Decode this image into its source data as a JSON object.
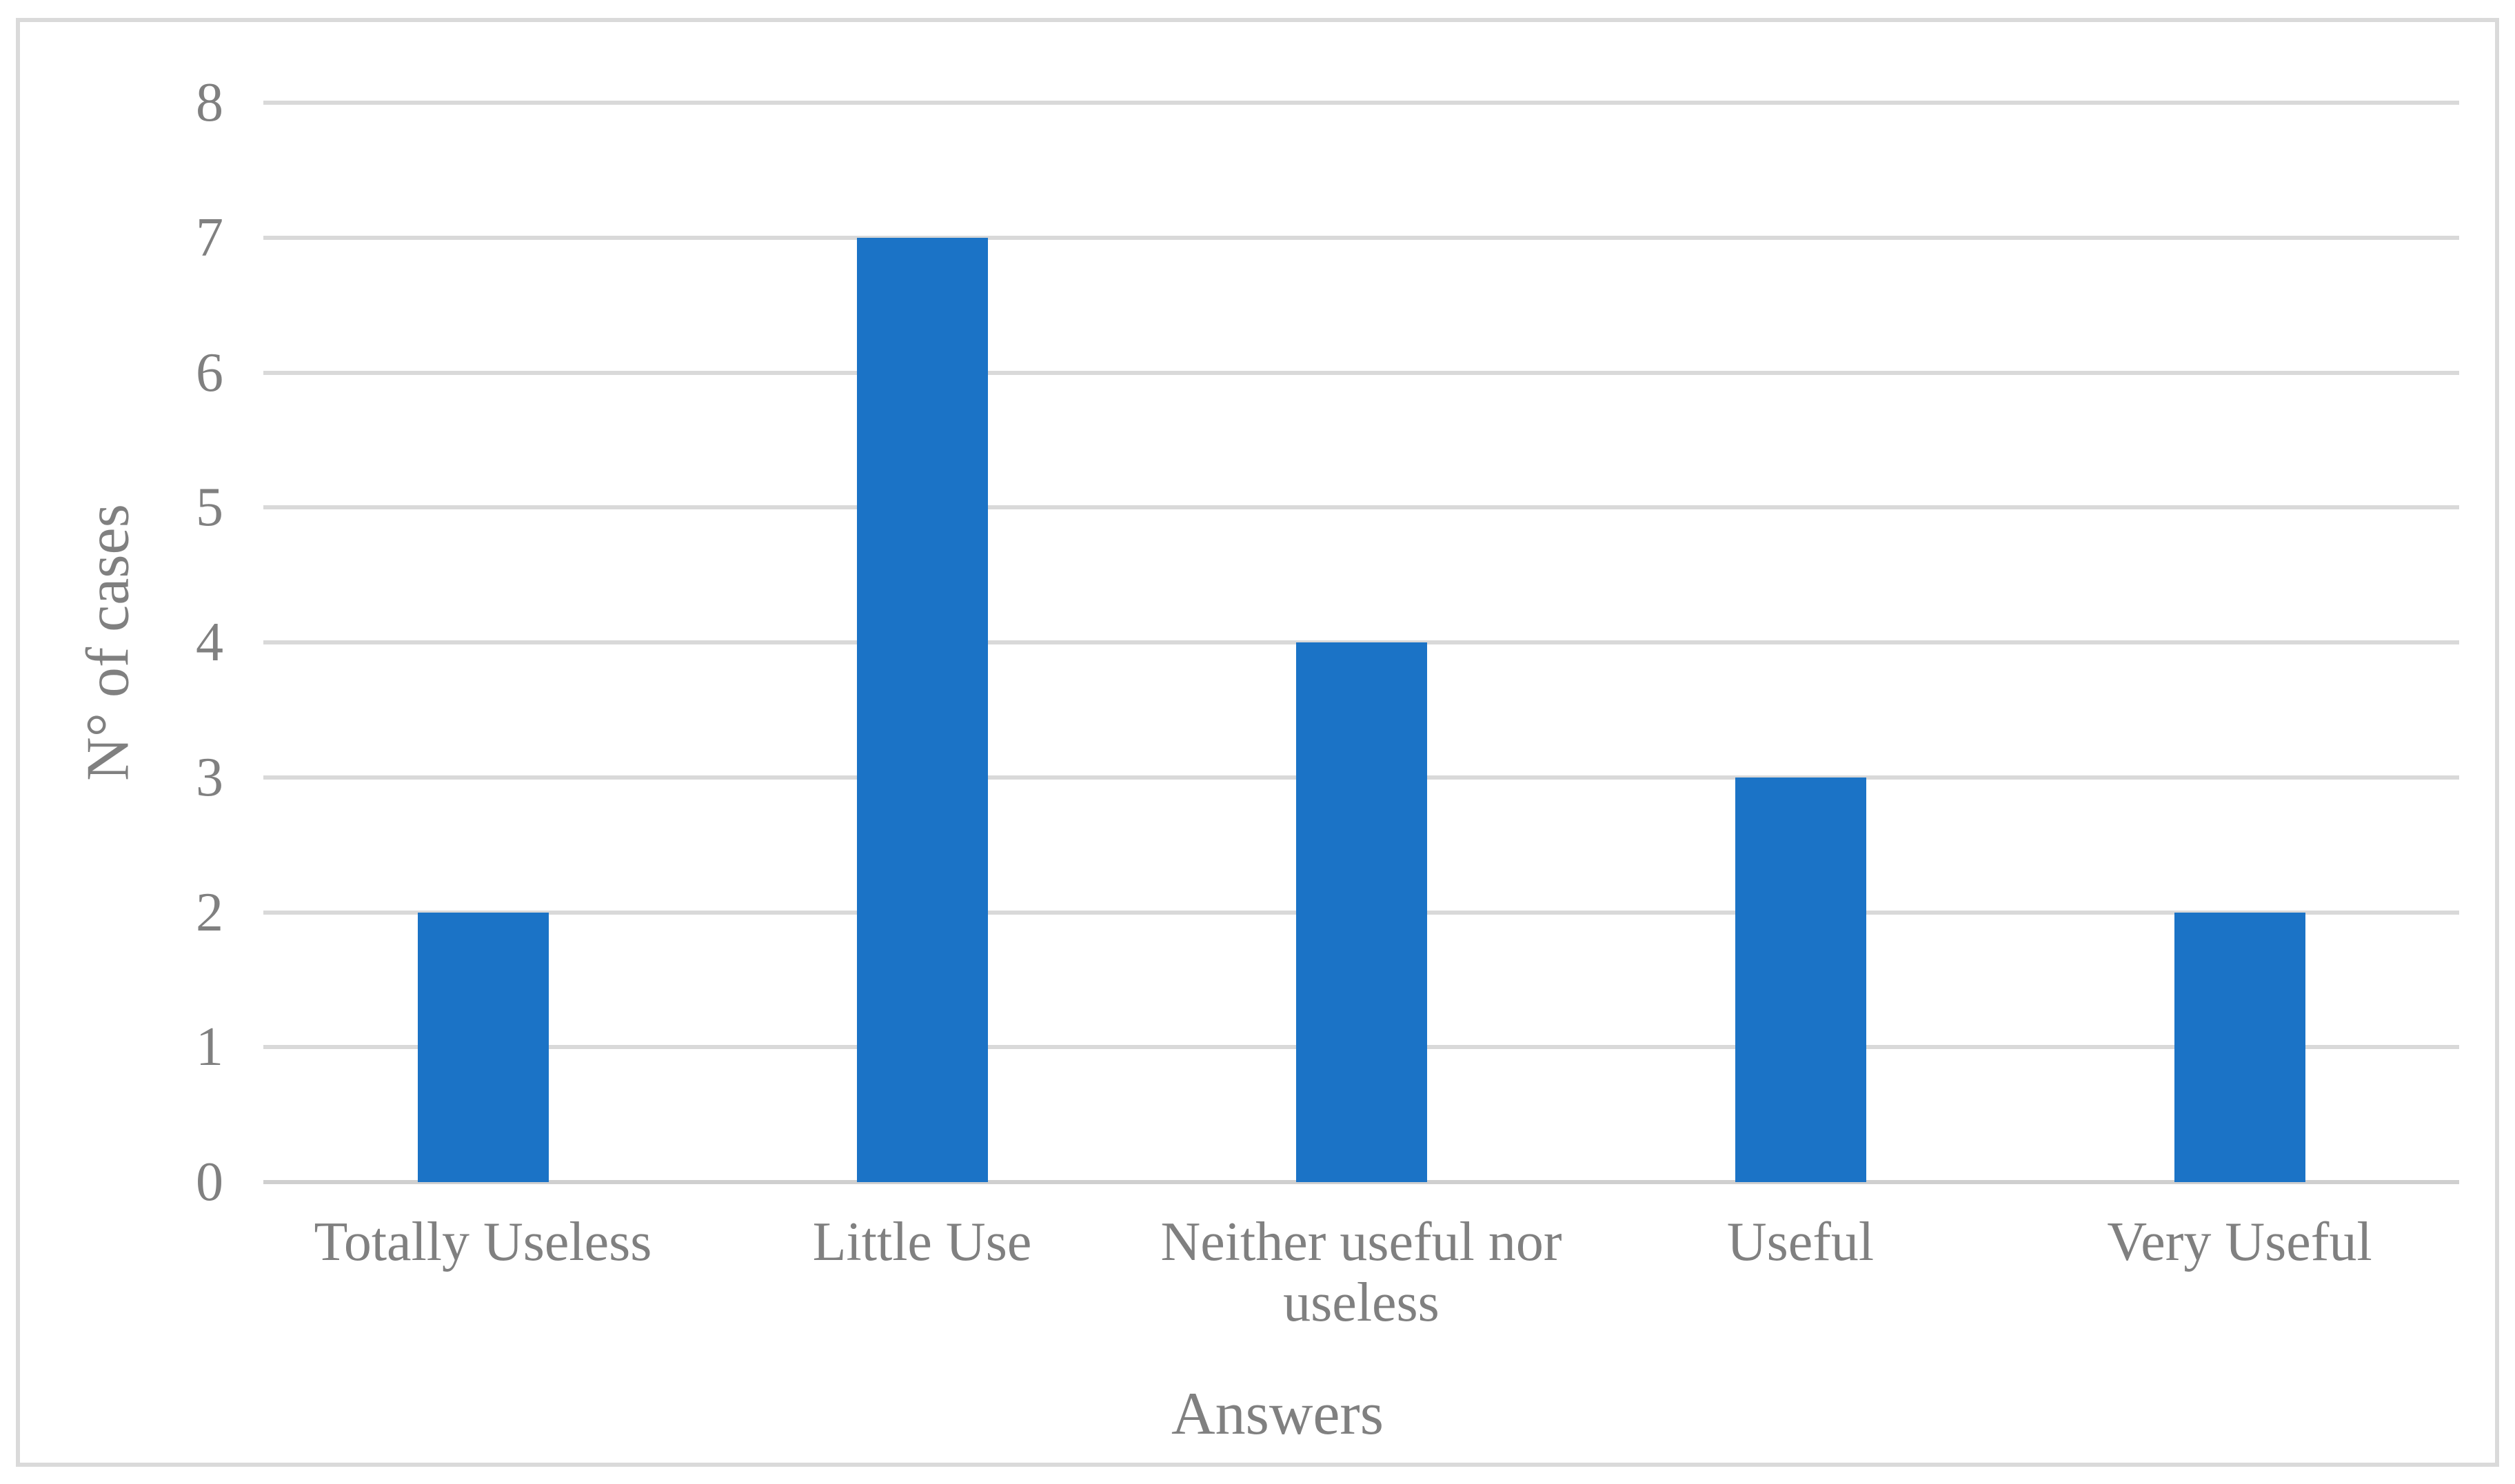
{
  "chart_data": {
    "type": "bar",
    "categories": [
      "Totally Useless",
      "Little Use",
      "Neither useful nor useless",
      "Useful",
      "Very Useful"
    ],
    "values": [
      2,
      7,
      4,
      3,
      2
    ],
    "title": "",
    "xlabel": "Answers",
    "ylabel": "N° of cases",
    "ylim": [
      0,
      8
    ],
    "ytick_step": 1,
    "ytick_labels": [
      "0",
      "1",
      "2",
      "3",
      "4",
      "5",
      "6",
      "7",
      "8"
    ],
    "grid": true,
    "legend": false,
    "series": [
      {
        "name": "N° of cases",
        "values": [
          2,
          7,
          4,
          3,
          2
        ]
      }
    ]
  },
  "colors": {
    "bar": "#1b73c6",
    "gridline": "#d9d9d9",
    "axis_line": "#cfcfcf",
    "text": "#808080",
    "border": "#dadada",
    "background": "#ffffff"
  }
}
